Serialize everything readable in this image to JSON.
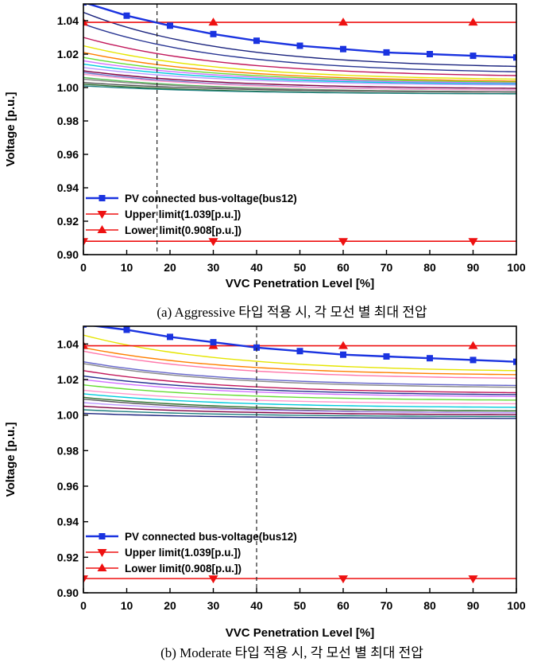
{
  "charts": [
    {
      "type": "line",
      "caption": "(a) Aggressive 타입 적용 시, 각 모선 별 최대 전압",
      "xlabel": "VVC Penetration Level [%]",
      "ylabel": "Voltage [p.u.]",
      "xlim": [
        0,
        100
      ],
      "ylim": [
        0.9,
        1.05
      ],
      "xticks": [
        "0",
        "10",
        "20",
        "30",
        "40",
        "50",
        "60",
        "70",
        "80",
        "90",
        "100"
      ],
      "yticks": [
        "0.90",
        "0.92",
        "0.94",
        "0.96",
        "0.98",
        "1.00",
        "1.02",
        "1.04"
      ],
      "vline_x": 17,
      "pv": {
        "name": "PV connected bus-voltage(bus12)",
        "color": "#1a33e0",
        "x": [
          0,
          10,
          20,
          30,
          40,
          50,
          60,
          70,
          80,
          90,
          100
        ],
        "y": [
          1.051,
          1.043,
          1.037,
          1.032,
          1.028,
          1.025,
          1.023,
          1.021,
          1.02,
          1.019,
          1.018
        ]
      },
      "upper": {
        "name": "Upper limit(1.039[p.u.])",
        "color": "#ee1111",
        "value": 1.039,
        "markers_x": [
          0,
          30,
          60,
          90
        ]
      },
      "lower": {
        "name": "Lower limit(0.908[p.u.])",
        "color": "#ee1111",
        "value": 0.908,
        "markers_x": [
          0,
          30,
          60,
          90
        ]
      },
      "buses": [
        {
          "start": 1.045,
          "end": 1.011,
          "color": "#1a237e"
        },
        {
          "start": 1.038,
          "end": 1.008,
          "color": "#283593"
        },
        {
          "start": 1.03,
          "end": 1.006,
          "color": "#c2185b"
        },
        {
          "start": 1.025,
          "end": 1.004,
          "color": "#e5e500"
        },
        {
          "start": 1.021,
          "end": 1.003,
          "color": "#ff7f00"
        },
        {
          "start": 1.018,
          "end": 1.0025,
          "color": "#66dd33"
        },
        {
          "start": 1.016,
          "end": 1.002,
          "color": "#d070ff"
        },
        {
          "start": 1.014,
          "end": 1.0015,
          "color": "#00ccdd"
        },
        {
          "start": 1.012,
          "end": 1.001,
          "color": "#bb99ff"
        },
        {
          "start": 1.01,
          "end": 0.999,
          "color": "#800040"
        },
        {
          "start": 1.009,
          "end": 0.998,
          "color": "#6677cc"
        },
        {
          "start": 1.008,
          "end": 0.998,
          "color": "#ff99cc"
        },
        {
          "start": 1.006,
          "end": 0.997,
          "color": "#55bb55"
        },
        {
          "start": 1.005,
          "end": 0.997,
          "color": "#888888"
        },
        {
          "start": 1.003,
          "end": 0.997,
          "color": "#555555"
        },
        {
          "start": 1.002,
          "end": 0.996,
          "color": "#2f6f2f"
        },
        {
          "start": 1.001,
          "end": 0.996,
          "color": "#1f7f7f"
        }
      ]
    },
    {
      "type": "line",
      "caption": "(b) Moderate 타입 적용 시, 각 모선 별 최대 전압",
      "xlabel": "VVC Penetration Level [%]",
      "ylabel": "Voltage [p.u.]",
      "xlim": [
        0,
        100
      ],
      "ylim": [
        0.9,
        1.05
      ],
      "xticks": [
        "0",
        "10",
        "20",
        "30",
        "40",
        "50",
        "60",
        "70",
        "80",
        "90",
        "100"
      ],
      "yticks": [
        "0.90",
        "0.92",
        "0.94",
        "0.96",
        "0.98",
        "1.00",
        "1.02",
        "1.04"
      ],
      "vline_x": 40,
      "pv": {
        "name": "PV connected bus-voltage(bus12)",
        "color": "#1a33e0",
        "x": [
          0,
          10,
          20,
          30,
          40,
          50,
          60,
          70,
          80,
          90,
          100
        ],
        "y": [
          1.051,
          1.048,
          1.044,
          1.041,
          1.038,
          1.036,
          1.034,
          1.033,
          1.032,
          1.031,
          1.03
        ]
      },
      "upper": {
        "name": "Upper limit(1.039[p.u.])",
        "color": "#ee1111",
        "value": 1.039,
        "markers_x": [
          0,
          30,
          60,
          90
        ]
      },
      "lower": {
        "name": "Lower limit(0.908[p.u.])",
        "color": "#ee1111",
        "value": 0.908,
        "markers_x": [
          0,
          30,
          60,
          90
        ]
      },
      "buses": [
        {
          "start": 1.045,
          "end": 1.024,
          "color": "#e5e500"
        },
        {
          "start": 1.038,
          "end": 1.022,
          "color": "#ff7f00"
        },
        {
          "start": 1.036,
          "end": 1.02,
          "color": "#ff77aa"
        },
        {
          "start": 1.03,
          "end": 1.016,
          "color": "#6666cc"
        },
        {
          "start": 1.029,
          "end": 1.015,
          "color": "#888888"
        },
        {
          "start": 1.025,
          "end": 1.012,
          "color": "#c2185b"
        },
        {
          "start": 1.022,
          "end": 1.011,
          "color": "#283593"
        },
        {
          "start": 1.02,
          "end": 1.01,
          "color": "#d070ff"
        },
        {
          "start": 1.017,
          "end": 1.008,
          "color": "#66dd33"
        },
        {
          "start": 1.014,
          "end": 1.006,
          "color": "#ff99cc"
        },
        {
          "start": 1.012,
          "end": 1.004,
          "color": "#00ccdd"
        },
        {
          "start": 1.01,
          "end": 1.002,
          "color": "#2f6f2f"
        },
        {
          "start": 1.009,
          "end": 1.001,
          "color": "#555555"
        },
        {
          "start": 1.007,
          "end": 1.001,
          "color": "#bb99ff"
        },
        {
          "start": 1.005,
          "end": 1.0,
          "color": "#800040"
        },
        {
          "start": 1.003,
          "end": 0.999,
          "color": "#1f7f7f"
        },
        {
          "start": 1.001,
          "end": 0.998,
          "color": "#1a237e"
        }
      ]
    }
  ]
}
